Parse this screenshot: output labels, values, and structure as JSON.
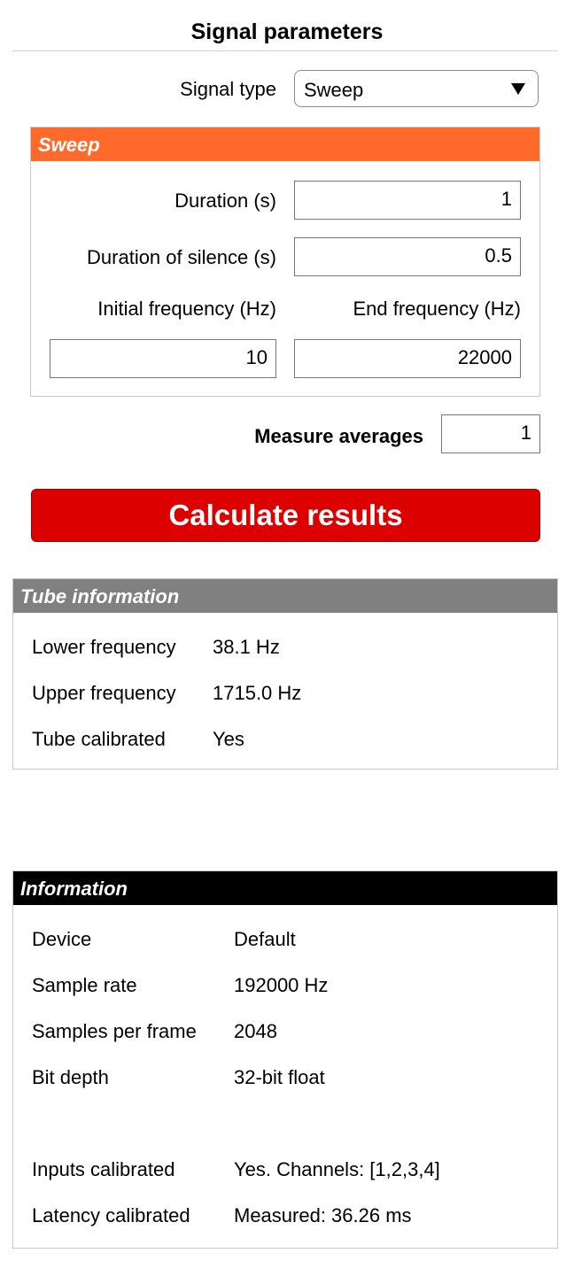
{
  "header": {
    "title": "Signal parameters"
  },
  "signal": {
    "type_label": "Signal type",
    "type_value": "Sweep"
  },
  "sweep": {
    "panel_title": "Sweep",
    "duration_label": "Duration (s)",
    "duration_value": "1",
    "silence_label": "Duration of silence (s)",
    "silence_value": "0.5",
    "initial_freq_label": "Initial frequency (Hz)",
    "initial_freq_value": "10",
    "end_freq_label": "End frequency (Hz)",
    "end_freq_value": "22000"
  },
  "measure": {
    "label": "Measure averages",
    "value": "1"
  },
  "actions": {
    "calculate_label": "Calculate results"
  },
  "tube": {
    "panel_title": "Tube information",
    "rows": [
      {
        "label": "Lower frequency",
        "value": "38.1 Hz"
      },
      {
        "label": "Upper frequency",
        "value": "1715.0 Hz"
      },
      {
        "label": "Tube calibrated",
        "value": "Yes"
      }
    ]
  },
  "information": {
    "panel_title": "Information",
    "rows": [
      {
        "label": "Device",
        "value": "Default"
      },
      {
        "label": "Sample rate",
        "value": "192000 Hz"
      },
      {
        "label": "Samples per frame",
        "value": "2048"
      },
      {
        "label": "Bit depth",
        "value": "32-bit float"
      },
      {
        "label": "Inputs calibrated",
        "value": "Yes. Channels: [1,2,3,4]"
      },
      {
        "label": "Latency calibrated",
        "value": "Measured: 36.26 ms"
      }
    ]
  },
  "colors": {
    "sweep_header": "#ff6a2b",
    "tube_header": "#808080",
    "info_header": "#000000",
    "button": "#dc0000"
  }
}
